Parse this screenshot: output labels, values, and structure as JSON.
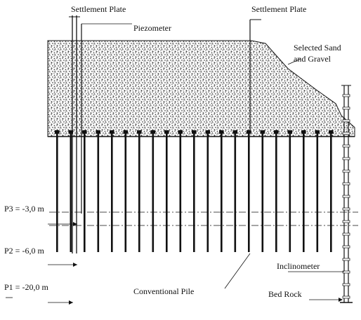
{
  "labels": {
    "settlement_plate_left": "Settlement Plate",
    "settlement_plate_right": "Settlement Plate",
    "piezometer": "Piezometer",
    "selected_sand_line1": "Selected Sand",
    "selected_sand_line2": "and Gravel",
    "p3": "P3 = -3,0 m",
    "p2": "P2 = -6,0 m",
    "p1": "P1 = -20,0 m",
    "inclinometer": "Inclinometer",
    "conventional_pile": "Conventional Pile",
    "bed_rock": "Bed Rock"
  },
  "colors": {
    "line": "#111111",
    "fill_dark": "#444444",
    "background": "#ffffff"
  }
}
